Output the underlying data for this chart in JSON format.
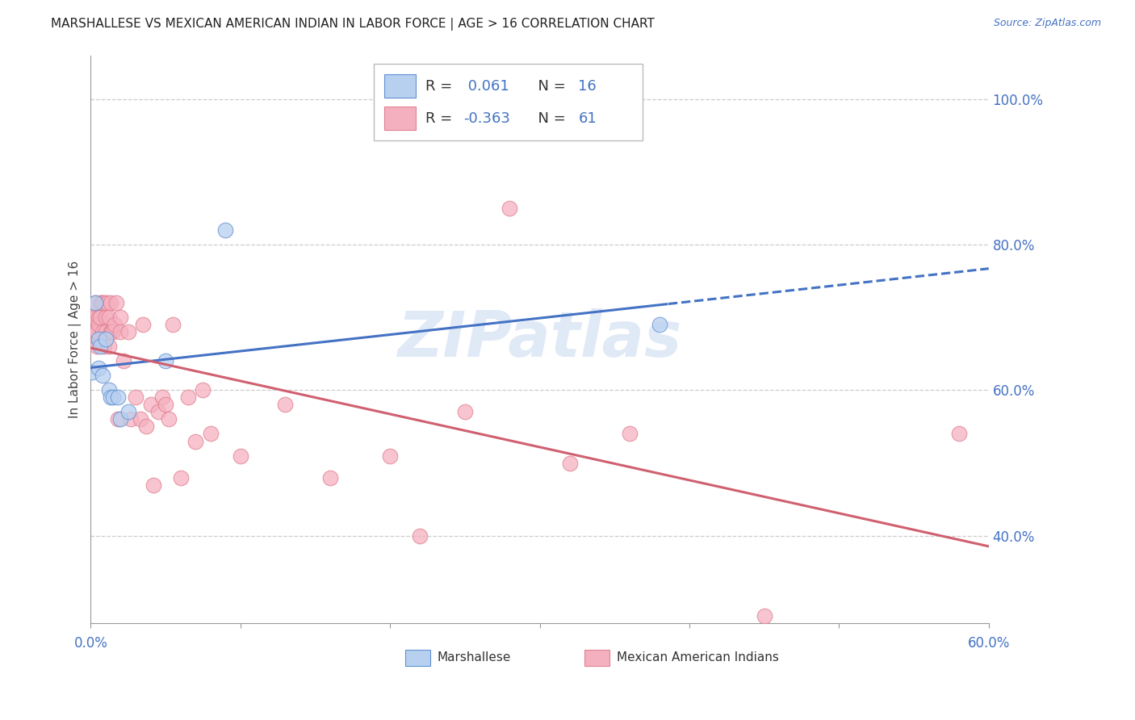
{
  "title": "MARSHALLESE VS MEXICAN AMERICAN INDIAN IN LABOR FORCE | AGE > 16 CORRELATION CHART",
  "source": "Source: ZipAtlas.com",
  "ylabel": "In Labor Force | Age > 16",
  "xlim": [
    0.0,
    0.6
  ],
  "ylim": [
    0.28,
    1.06
  ],
  "legend_blue_r": "0.061",
  "legend_blue_n": "16",
  "legend_pink_r": "-0.363",
  "legend_pink_n": "61",
  "blue_fill": "#b8d0f0",
  "pink_fill": "#f5b0c0",
  "blue_edge": "#6090d0",
  "pink_edge": "#e08090",
  "blue_line": "#4472C4",
  "pink_line": "#d06070",
  "grid_color": "#cccccc",
  "grid_vals": [
    0.4,
    0.6,
    0.8,
    1.0
  ],
  "right_tick_color": "#4472C4",
  "watermark": "ZIPatlas",
  "marshallese_x": [
    0.001,
    0.003,
    0.005,
    0.005,
    0.006,
    0.008,
    0.01,
    0.012,
    0.013,
    0.015,
    0.018,
    0.02,
    0.025,
    0.05,
    0.09,
    0.38
  ],
  "marshallese_y": [
    0.625,
    0.72,
    0.67,
    0.63,
    0.66,
    0.62,
    0.67,
    0.6,
    0.59,
    0.59,
    0.59,
    0.56,
    0.57,
    0.64,
    0.82,
    0.69
  ],
  "mexican_x": [
    0.001,
    0.002,
    0.002,
    0.003,
    0.003,
    0.003,
    0.004,
    0.004,
    0.005,
    0.005,
    0.006,
    0.007,
    0.007,
    0.008,
    0.008,
    0.009,
    0.009,
    0.01,
    0.01,
    0.011,
    0.012,
    0.012,
    0.013,
    0.013,
    0.014,
    0.015,
    0.016,
    0.017,
    0.018,
    0.02,
    0.02,
    0.022,
    0.025,
    0.027,
    0.03,
    0.033,
    0.035,
    0.037,
    0.04,
    0.042,
    0.045,
    0.048,
    0.05,
    0.052,
    0.055,
    0.06,
    0.065,
    0.07,
    0.075,
    0.08,
    0.1,
    0.13,
    0.16,
    0.2,
    0.22,
    0.25,
    0.28,
    0.32,
    0.36,
    0.45,
    0.58
  ],
  "mexican_y": [
    0.7,
    0.71,
    0.67,
    0.68,
    0.7,
    0.72,
    0.68,
    0.66,
    0.7,
    0.69,
    0.7,
    0.72,
    0.72,
    0.68,
    0.72,
    0.72,
    0.66,
    0.7,
    0.68,
    0.72,
    0.7,
    0.66,
    0.72,
    0.68,
    0.68,
    0.68,
    0.69,
    0.72,
    0.56,
    0.7,
    0.68,
    0.64,
    0.68,
    0.56,
    0.59,
    0.56,
    0.69,
    0.55,
    0.58,
    0.47,
    0.57,
    0.59,
    0.58,
    0.56,
    0.69,
    0.48,
    0.59,
    0.53,
    0.6,
    0.54,
    0.51,
    0.58,
    0.48,
    0.51,
    0.4,
    0.57,
    0.85,
    0.5,
    0.54,
    0.29,
    0.54
  ]
}
